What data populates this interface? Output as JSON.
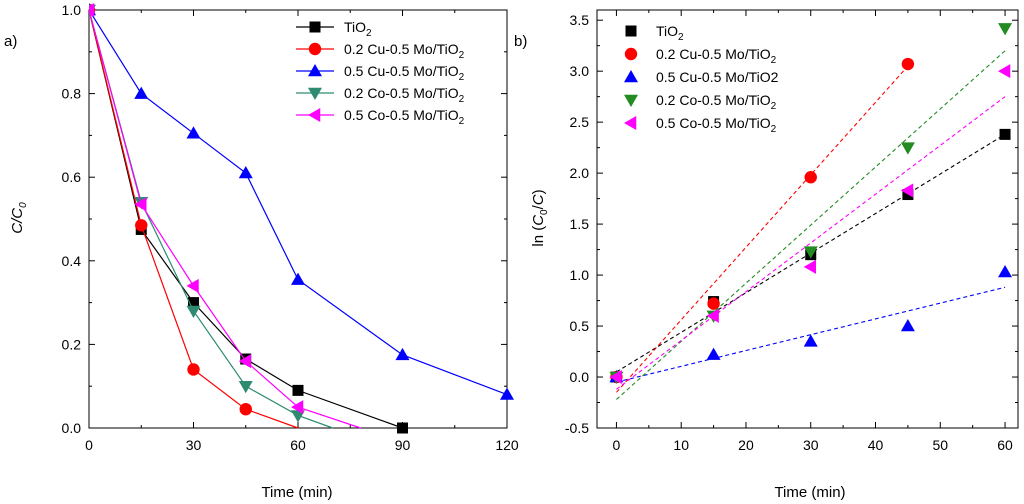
{
  "chart_data": [
    {
      "panel": "a",
      "panel_label": "a)",
      "type": "line",
      "xlabel": "Time (min)",
      "ylabel_main": "C/C",
      "ylabel_sub": "0",
      "xlim": [
        0,
        120
      ],
      "ylim": [
        0,
        1.0
      ],
      "xticks": [
        0,
        30,
        60,
        90,
        120
      ],
      "yticks": [
        0.0,
        0.2,
        0.4,
        0.6,
        0.8,
        1.0
      ],
      "xtick_labels": [
        "0",
        "30",
        "60",
        "90",
        "120"
      ],
      "ytick_labels": [
        "0.0",
        "0.2",
        "0.4",
        "0.6",
        "0.8",
        "1.0"
      ],
      "legend_position": "top-right",
      "series": [
        {
          "name": "TiO2",
          "legend_main": "TiO",
          "legend_sub": "2",
          "legend_tail": "",
          "marker": "square",
          "color": "#000000",
          "x": [
            0,
            15,
            30,
            45,
            60,
            90
          ],
          "y": [
            1.0,
            0.475,
            0.3,
            0.165,
            0.09,
            0.0
          ]
        },
        {
          "name": "0.2 Cu-0.5 Mo/TiO2",
          "legend_main": "0.2 Cu-0.5 Mo/TiO",
          "legend_sub": "2",
          "legend_tail": "",
          "marker": "circle",
          "color": "#ff0000",
          "x": [
            0,
            15,
            30,
            45,
            60
          ],
          "y": [
            1.0,
            0.485,
            0.14,
            0.045,
            0.0
          ]
        },
        {
          "name": "0.5 Cu-0.5 Mo/TiO2",
          "legend_main": "0.5 Cu-0.5 Mo/TiO",
          "legend_sub": "2",
          "legend_tail": "",
          "marker": "triangle-up",
          "color": "#0000ff",
          "x": [
            0,
            15,
            30,
            45,
            60,
            90,
            120
          ],
          "y": [
            1.0,
            0.8,
            0.705,
            0.61,
            0.355,
            0.175,
            0.08
          ]
        },
        {
          "name": "0.2 Co-0.5 Mo/TiO2",
          "legend_main": "0.2 Co-0.5 Mo/TiO",
          "legend_sub": "2",
          "legend_tail": "",
          "marker": "triangle-down",
          "color": "#2e8b71",
          "x": [
            0,
            15,
            30,
            45,
            60,
            70
          ],
          "y": [
            1.0,
            0.54,
            0.28,
            0.1,
            0.03,
            0.0
          ]
        },
        {
          "name": "0.5 Co-0.5 Mo/TiO2",
          "legend_main": "0.5 Co-0.5 Mo/TiO",
          "legend_sub": "2",
          "legend_tail": "",
          "marker": "triangle-left",
          "color": "#ff00ff",
          "x": [
            0,
            15,
            30,
            45,
            60,
            78
          ],
          "y": [
            1.0,
            0.535,
            0.34,
            0.16,
            0.05,
            0.0
          ]
        }
      ]
    },
    {
      "panel": "b",
      "panel_label": "b)",
      "type": "scatter",
      "xlabel": "Time (min)",
      "ylabel_pre": "ln (",
      "ylabel_c0": "C",
      "ylabel_sub": "0",
      "ylabel_post": "/",
      "ylabel_c": "C",
      "ylabel_close": ")",
      "xlim": [
        -3,
        62
      ],
      "ylim": [
        -0.5,
        3.6
      ],
      "xticks": [
        0,
        10,
        20,
        30,
        40,
        50,
        60
      ],
      "yticks": [
        -0.5,
        0.0,
        0.5,
        1.0,
        1.5,
        2.0,
        2.5,
        3.0,
        3.5
      ],
      "xtick_labels": [
        "0",
        "10",
        "20",
        "30",
        "40",
        "50",
        "60"
      ],
      "ytick_labels": [
        "-0.5",
        "0.0",
        "0.5",
        "1.0",
        "1.5",
        "2.0",
        "2.5",
        "3.0",
        "3.5"
      ],
      "legend_position": "top-left",
      "series": [
        {
          "name": "TiO2",
          "legend_main": "TiO",
          "legend_sub": "2",
          "legend_tail": "",
          "marker": "square",
          "color": "#000000",
          "x": [
            0,
            15,
            30,
            45,
            60
          ],
          "y": [
            0.0,
            0.74,
            1.2,
            1.79,
            2.38
          ],
          "fit": {
            "x": [
              0,
              60
            ],
            "y": [
              0.05,
              2.38
            ]
          }
        },
        {
          "name": "0.2 Cu-0.5 Mo/TiO2",
          "legend_main": "0.2 Cu-0.5 Mo/TiO",
          "legend_sub": "2",
          "legend_tail": "",
          "marker": "circle",
          "color": "#ff0000",
          "x": [
            0,
            15,
            30,
            45
          ],
          "y": [
            0.0,
            0.72,
            1.96,
            3.07
          ],
          "fit": {
            "x": [
              0,
              45
            ],
            "y": [
              -0.15,
              3.05
            ]
          }
        },
        {
          "name": "0.5 Cu-0.5 Mo/TiO2",
          "legend_main": "0.5 Cu-0.5 Mo/TiO2",
          "legend_sub": "",
          "legend_tail": "",
          "marker": "triangle-up",
          "color": "#0000ff",
          "x": [
            0,
            15,
            30,
            45,
            60
          ],
          "y": [
            0.0,
            0.22,
            0.35,
            0.5,
            1.03
          ],
          "fit": {
            "x": [
              0,
              60
            ],
            "y": [
              -0.05,
              0.88
            ]
          }
        },
        {
          "name": "0.2 Co-0.5 Mo/TiO2",
          "legend_main": "0.2 Co-0.5 Mo/TiO",
          "legend_sub": "2",
          "legend_tail": "",
          "marker": "triangle-down",
          "color": "#228b22",
          "x": [
            0,
            15,
            30,
            45,
            60
          ],
          "y": [
            0.0,
            0.6,
            1.23,
            2.25,
            3.42
          ],
          "fit": {
            "x": [
              0,
              60
            ],
            "y": [
              -0.22,
              3.2
            ]
          }
        },
        {
          "name": "0.5 Co-0.5 Mo/TiO2",
          "legend_main": "0.5 Co-0.5 Mo/TiO",
          "legend_sub": "2",
          "legend_tail": "",
          "marker": "triangle-left",
          "color": "#ff00ff",
          "x": [
            0,
            15,
            30,
            45,
            60
          ],
          "y": [
            0.0,
            0.6,
            1.08,
            1.83,
            3.0
          ],
          "fit": {
            "x": [
              0,
              60
            ],
            "y": [
              -0.12,
              2.75
            ]
          }
        }
      ]
    }
  ]
}
